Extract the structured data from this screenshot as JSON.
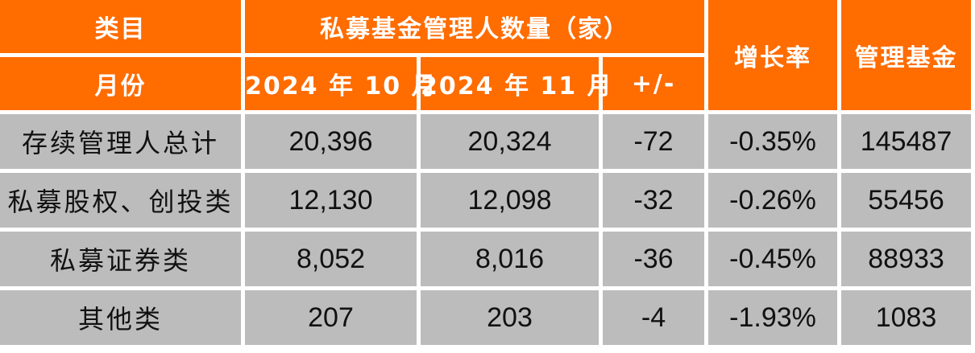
{
  "header": {
    "category_label": "类目",
    "month_label": "月份",
    "group_label": "私募基金管理人数量（家）",
    "oct_label": "2024 年 10 月",
    "nov_label": "2024 年 11 月",
    "change_label": "+/-",
    "growth_label": "增长率",
    "aum_label": "管理基金"
  },
  "rows": [
    {
      "name": "存续管理人总计",
      "oct": "20,396",
      "nov": "20,324",
      "change": "-72",
      "growth": "-0.35%",
      "aum": "145487"
    },
    {
      "name": "私募股权、创投类",
      "oct": "12,130",
      "nov": "12,098",
      "change": "-32",
      "growth": "-0.26%",
      "aum": "55456"
    },
    {
      "name": "私募证券类",
      "oct": "8,052",
      "nov": "8,016",
      "change": "-36",
      "growth": "-0.45%",
      "aum": "88933"
    },
    {
      "name": "其他类",
      "oct": "207",
      "nov": "203",
      "change": "-4",
      "growth": "-1.93%",
      "aum": "1083"
    }
  ],
  "colors": {
    "header_bg": "#ff6c00",
    "header_text": "#ffffff",
    "cell_bg": "#bcbcbc",
    "cell_text": "#111111"
  }
}
